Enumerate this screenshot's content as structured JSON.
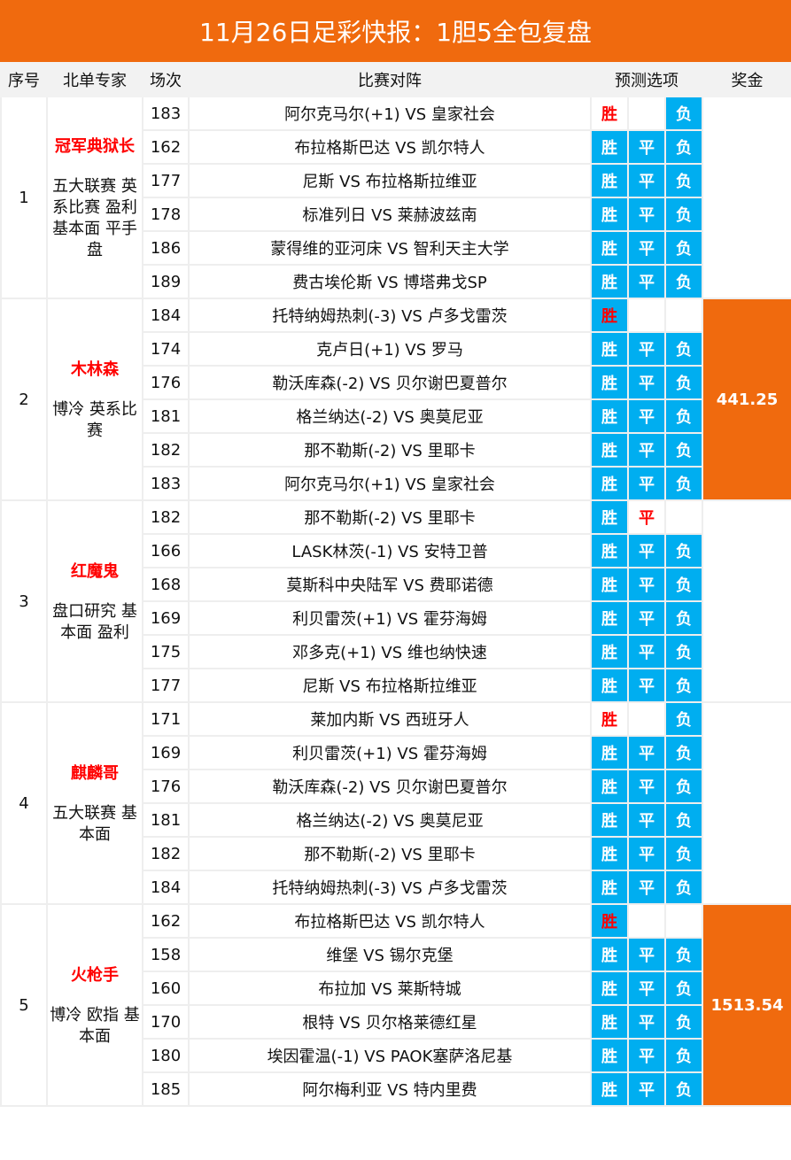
{
  "title": "11月26日足彩快报：1胆5全包复盘",
  "colors": {
    "accent": "#f06a0e",
    "pick_bg": "#00aef0",
    "highlight_text": "#ff0000"
  },
  "headers": [
    "序号",
    "北单专家",
    "场次",
    "比赛对阵",
    "预测选项",
    "奖金"
  ],
  "groups": [
    {
      "index": "1",
      "expert": "冠军典狱长",
      "desc": "五大联赛 英系比赛 盈利基本面 平手盘",
      "prize": "",
      "rows": [
        {
          "num": "183",
          "match": "阿尔克马尔(+1) VS 皇家社会",
          "picks": [
            {
              "label": "胜",
              "style": "red"
            },
            {
              "label": "",
              "style": "empty"
            },
            {
              "label": "负",
              "style": "blue"
            }
          ]
        },
        {
          "num": "162",
          "match": "布拉格斯巴达 VS 凯尔特人",
          "picks": [
            {
              "label": "胜",
              "style": "blue"
            },
            {
              "label": "平",
              "style": "blue"
            },
            {
              "label": "负",
              "style": "blue"
            }
          ]
        },
        {
          "num": "177",
          "match": "尼斯 VS 布拉格斯拉维亚",
          "picks": [
            {
              "label": "胜",
              "style": "blue"
            },
            {
              "label": "平",
              "style": "blue"
            },
            {
              "label": "负",
              "style": "blue"
            }
          ]
        },
        {
          "num": "178",
          "match": "标准列日 VS 莱赫波兹南",
          "picks": [
            {
              "label": "胜",
              "style": "blue"
            },
            {
              "label": "平",
              "style": "blue"
            },
            {
              "label": "负",
              "style": "blue"
            }
          ]
        },
        {
          "num": "186",
          "match": "蒙得维的亚河床 VS 智利天主大学",
          "picks": [
            {
              "label": "胜",
              "style": "blue"
            },
            {
              "label": "平",
              "style": "blue"
            },
            {
              "label": "负",
              "style": "blue"
            }
          ]
        },
        {
          "num": "189",
          "match": "费古埃伦斯 VS 博塔弗戈SP",
          "picks": [
            {
              "label": "胜",
              "style": "blue"
            },
            {
              "label": "平",
              "style": "blue"
            },
            {
              "label": "负",
              "style": "blue"
            }
          ]
        }
      ]
    },
    {
      "index": "2",
      "expert": "木林森",
      "desc": "博冷 英系比赛",
      "prize": "441.25",
      "rows": [
        {
          "num": "184",
          "match": "托特纳姆热刺(-3) VS 卢多戈雷茨",
          "picks": [
            {
              "label": "胜",
              "style": "redblue"
            },
            {
              "label": "",
              "style": "empty"
            },
            {
              "label": "",
              "style": "empty"
            }
          ]
        },
        {
          "num": "174",
          "match": "克卢日(+1) VS 罗马",
          "picks": [
            {
              "label": "胜",
              "style": "blue"
            },
            {
              "label": "平",
              "style": "blue"
            },
            {
              "label": "负",
              "style": "blue"
            }
          ]
        },
        {
          "num": "176",
          "match": "勒沃库森(-2) VS 贝尔谢巴夏普尔",
          "picks": [
            {
              "label": "胜",
              "style": "blue"
            },
            {
              "label": "平",
              "style": "blue"
            },
            {
              "label": "负",
              "style": "blue"
            }
          ]
        },
        {
          "num": "181",
          "match": "格兰纳达(-2) VS 奥莫尼亚",
          "picks": [
            {
              "label": "胜",
              "style": "blue"
            },
            {
              "label": "平",
              "style": "blue"
            },
            {
              "label": "负",
              "style": "blue"
            }
          ]
        },
        {
          "num": "182",
          "match": "那不勒斯(-2) VS 里耶卡",
          "picks": [
            {
              "label": "胜",
              "style": "blue"
            },
            {
              "label": "平",
              "style": "blue"
            },
            {
              "label": "负",
              "style": "blue"
            }
          ]
        },
        {
          "num": "183",
          "match": "阿尔克马尔(+1) VS 皇家社会",
          "picks": [
            {
              "label": "胜",
              "style": "blue"
            },
            {
              "label": "平",
              "style": "blue"
            },
            {
              "label": "负",
              "style": "blue"
            }
          ]
        }
      ]
    },
    {
      "index": "3",
      "expert": "红魔鬼",
      "desc": "盘口研究 基本面 盈利",
      "prize": "",
      "rows": [
        {
          "num": "182",
          "match": "那不勒斯(-2) VS 里耶卡",
          "picks": [
            {
              "label": "胜",
              "style": "blue"
            },
            {
              "label": "平",
              "style": "red"
            },
            {
              "label": "",
              "style": "empty"
            }
          ]
        },
        {
          "num": "166",
          "match": "LASK林茨(-1) VS 安特卫普",
          "picks": [
            {
              "label": "胜",
              "style": "blue"
            },
            {
              "label": "平",
              "style": "blue"
            },
            {
              "label": "负",
              "style": "blue"
            }
          ]
        },
        {
          "num": "168",
          "match": "莫斯科中央陆军 VS 费耶诺德",
          "picks": [
            {
              "label": "胜",
              "style": "blue"
            },
            {
              "label": "平",
              "style": "blue"
            },
            {
              "label": "负",
              "style": "blue"
            }
          ]
        },
        {
          "num": "169",
          "match": "利贝雷茨(+1) VS 霍芬海姆",
          "picks": [
            {
              "label": "胜",
              "style": "blue"
            },
            {
              "label": "平",
              "style": "blue"
            },
            {
              "label": "负",
              "style": "blue"
            }
          ]
        },
        {
          "num": "175",
          "match": "邓多克(+1) VS 维也纳快速",
          "picks": [
            {
              "label": "胜",
              "style": "blue"
            },
            {
              "label": "平",
              "style": "blue"
            },
            {
              "label": "负",
              "style": "blue"
            }
          ]
        },
        {
          "num": "177",
          "match": "尼斯 VS 布拉格斯拉维亚",
          "picks": [
            {
              "label": "胜",
              "style": "blue"
            },
            {
              "label": "平",
              "style": "blue"
            },
            {
              "label": "负",
              "style": "blue"
            }
          ]
        }
      ]
    },
    {
      "index": "4",
      "expert": "麒麟哥",
      "desc": "五大联赛 基本面",
      "prize": "",
      "rows": [
        {
          "num": "171",
          "match": "莱加内斯 VS 西班牙人",
          "picks": [
            {
              "label": "胜",
              "style": "red"
            },
            {
              "label": "",
              "style": "empty"
            },
            {
              "label": "负",
              "style": "blue"
            }
          ]
        },
        {
          "num": "169",
          "match": "利贝雷茨(+1) VS 霍芬海姆",
          "picks": [
            {
              "label": "胜",
              "style": "blue"
            },
            {
              "label": "平",
              "style": "blue"
            },
            {
              "label": "负",
              "style": "blue"
            }
          ]
        },
        {
          "num": "176",
          "match": "勒沃库森(-2) VS 贝尔谢巴夏普尔",
          "picks": [
            {
              "label": "胜",
              "style": "blue"
            },
            {
              "label": "平",
              "style": "blue"
            },
            {
              "label": "负",
              "style": "blue"
            }
          ]
        },
        {
          "num": "181",
          "match": "格兰纳达(-2) VS 奥莫尼亚",
          "picks": [
            {
              "label": "胜",
              "style": "blue"
            },
            {
              "label": "平",
              "style": "blue"
            },
            {
              "label": "负",
              "style": "blue"
            }
          ]
        },
        {
          "num": "182",
          "match": "那不勒斯(-2) VS 里耶卡",
          "picks": [
            {
              "label": "胜",
              "style": "blue"
            },
            {
              "label": "平",
              "style": "blue"
            },
            {
              "label": "负",
              "style": "blue"
            }
          ]
        },
        {
          "num": "184",
          "match": "托特纳姆热刺(-3) VS 卢多戈雷茨",
          "picks": [
            {
              "label": "胜",
              "style": "blue"
            },
            {
              "label": "平",
              "style": "blue"
            },
            {
              "label": "负",
              "style": "blue"
            }
          ]
        }
      ]
    },
    {
      "index": "5",
      "expert": "火枪手",
      "desc": "博冷 欧指 基本面",
      "prize": "1513.54",
      "rows": [
        {
          "num": "162",
          "match": "布拉格斯巴达 VS 凯尔特人",
          "picks": [
            {
              "label": "胜",
              "style": "redblue"
            },
            {
              "label": "",
              "style": "empty"
            },
            {
              "label": "",
              "style": "empty"
            }
          ]
        },
        {
          "num": "158",
          "match": "维堡 VS 锡尔克堡",
          "picks": [
            {
              "label": "胜",
              "style": "blue"
            },
            {
              "label": "平",
              "style": "blue"
            },
            {
              "label": "负",
              "style": "blue"
            }
          ]
        },
        {
          "num": "160",
          "match": "布拉加 VS 莱斯特城",
          "picks": [
            {
              "label": "胜",
              "style": "blue"
            },
            {
              "label": "平",
              "style": "blue"
            },
            {
              "label": "负",
              "style": "blue"
            }
          ]
        },
        {
          "num": "170",
          "match": "根特 VS 贝尔格莱德红星",
          "picks": [
            {
              "label": "胜",
              "style": "blue"
            },
            {
              "label": "平",
              "style": "blue"
            },
            {
              "label": "负",
              "style": "blue"
            }
          ]
        },
        {
          "num": "180",
          "match": "埃因霍温(-1) VS PAOK塞萨洛尼基",
          "picks": [
            {
              "label": "胜",
              "style": "blue"
            },
            {
              "label": "平",
              "style": "blue"
            },
            {
              "label": "负",
              "style": "blue"
            }
          ]
        },
        {
          "num": "185",
          "match": "阿尔梅利亚 VS 特内里费",
          "picks": [
            {
              "label": "胜",
              "style": "blue"
            },
            {
              "label": "平",
              "style": "blue"
            },
            {
              "label": "负",
              "style": "blue"
            }
          ]
        }
      ]
    }
  ]
}
